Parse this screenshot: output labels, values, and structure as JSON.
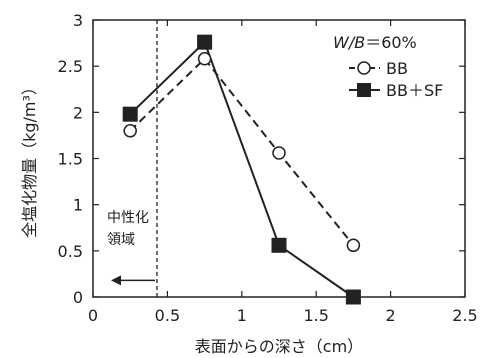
{
  "chart_data": {
    "type": "line",
    "xlabel": "表面からの深さ（cm）",
    "ylabel": "全塩化物量（kg/m³）",
    "xlim": [
      0,
      2.5
    ],
    "ylim": [
      0,
      3
    ],
    "x_ticks": [
      "0",
      "0.5",
      "1",
      "1.5",
      "2",
      "2.5"
    ],
    "y_ticks": [
      "0",
      "0.5",
      "1",
      "1.5",
      "2",
      "2.5",
      "3"
    ],
    "grid": false,
    "legend_title": "W/B＝60%",
    "legend_position": "top-right",
    "series": [
      {
        "name": "BB",
        "style": "dashed",
        "marker": "open-circle",
        "color": "#222222",
        "x": [
          0.25,
          0.75,
          1.25,
          1.75
        ],
        "y": [
          1.8,
          2.58,
          1.56,
          0.56
        ]
      },
      {
        "name": "BB＋SF",
        "style": "solid",
        "marker": "filled-square",
        "color": "#222222",
        "x": [
          0.25,
          0.75,
          1.25,
          1.75
        ],
        "y": [
          1.98,
          2.76,
          0.56,
          0.0
        ]
      }
    ],
    "annotations": {
      "neutralization_depth": 0.43,
      "label_line1": "中性化",
      "label_line2": "領域"
    }
  }
}
